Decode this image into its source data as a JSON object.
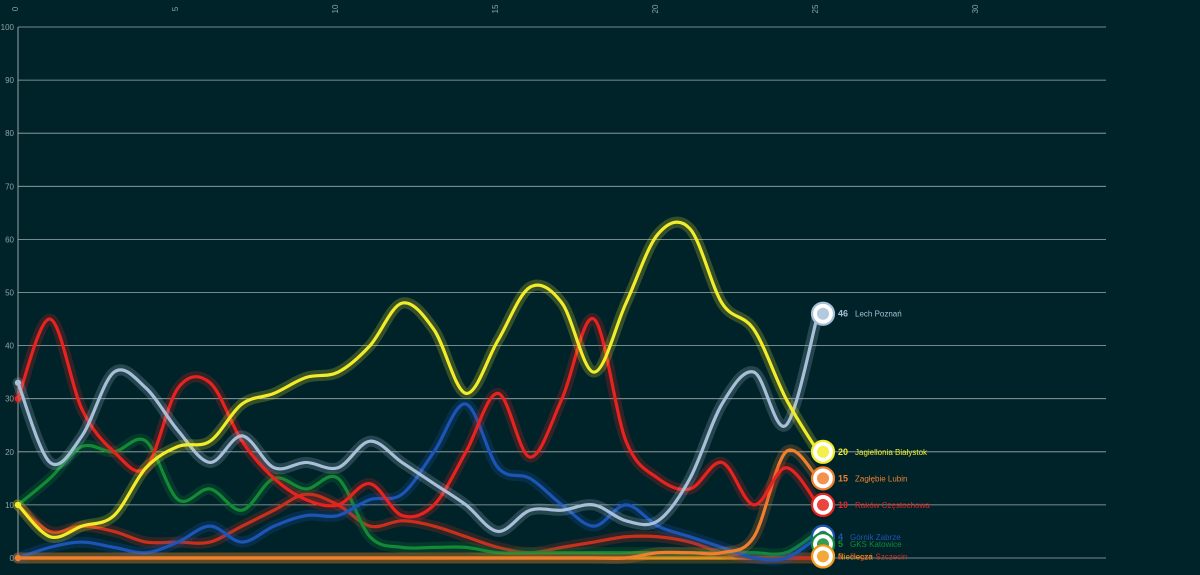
{
  "chart_data": {
    "type": "line",
    "title": "",
    "xlabel": "",
    "ylabel": "",
    "xlim": [
      0,
      34
    ],
    "ylim": [
      0,
      100
    ],
    "x_ticks": [
      0,
      5,
      10,
      15,
      20,
      25,
      30
    ],
    "y_ticks": [
      0,
      10,
      20,
      30,
      40,
      50,
      60,
      70,
      80,
      90,
      100
    ],
    "grid": true,
    "legend": "end-of-line labels on the right",
    "series": [
      {
        "name": "Lech Poznań",
        "label_value": "46",
        "color": "#a8bfd8",
        "icon": "lech-poznan-crest-icon",
        "x": [
          0,
          1,
          2,
          3,
          4,
          5,
          6,
          7,
          8,
          9,
          10,
          11,
          12,
          13,
          14,
          15,
          16,
          17,
          18,
          19,
          20,
          21,
          22,
          23,
          24,
          25
        ],
        "values": [
          33,
          18,
          23,
          35,
          32,
          24,
          18,
          23,
          17,
          18,
          17,
          22,
          18,
          14,
          10,
          5,
          9,
          9,
          10,
          7,
          7,
          15,
          29,
          35,
          25,
          46
        ]
      },
      {
        "name": "Jagiellonia Białystok",
        "label_value": "20",
        "color": "#f2ec2a",
        "icon": "jagiellonia-crest-icon",
        "x": [
          0,
          1,
          2,
          3,
          4,
          5,
          6,
          7,
          8,
          9,
          10,
          11,
          12,
          13,
          14,
          15,
          16,
          17,
          18,
          19,
          20,
          21,
          22,
          23,
          24,
          25
        ],
        "values": [
          10,
          4,
          6,
          8,
          17,
          21,
          22,
          29,
          31,
          34,
          35,
          40,
          48,
          43,
          31,
          41,
          51,
          48,
          35,
          48,
          61,
          62,
          48,
          43,
          30,
          20
        ]
      },
      {
        "name": "Zagłębie Lubin",
        "label_value": "15",
        "color": "#f07f2e",
        "icon": "zaglebie-crest-icon",
        "x": [
          0,
          1,
          2,
          3,
          4,
          5,
          6,
          7,
          8,
          9,
          10,
          11,
          12,
          13,
          14,
          15,
          16,
          17,
          18,
          19,
          20,
          21,
          22,
          23,
          24,
          25
        ],
        "values": [
          0,
          0,
          0,
          0,
          0,
          0,
          0,
          0,
          0,
          0,
          0,
          0,
          0,
          0,
          0,
          0,
          0,
          0,
          0,
          0,
          1,
          1,
          1,
          4,
          20,
          15
        ]
      },
      {
        "name": "Raków Częstochowa",
        "label_value": "10",
        "color": "#e8231f",
        "icon": "rakow-crest-icon",
        "x": [
          0,
          1,
          2,
          3,
          4,
          5,
          6,
          7,
          8,
          9,
          10,
          11,
          12,
          13,
          14,
          15,
          16,
          17,
          18,
          19,
          20,
          21,
          22,
          23,
          24,
          25
        ],
        "values": [
          30,
          45,
          28,
          20,
          17,
          32,
          33,
          22,
          15,
          11,
          10,
          14,
          8,
          10,
          20,
          31,
          19,
          30,
          45,
          22,
          15,
          13,
          18,
          10,
          17,
          10
        ]
      },
      {
        "name": "Górnik Zabrze",
        "label_value": "4",
        "color": "#1c55b5",
        "icon": "gornik-crest-icon",
        "x": [
          0,
          1,
          2,
          3,
          4,
          5,
          6,
          7,
          8,
          9,
          10,
          11,
          12,
          13,
          14,
          15,
          16,
          17,
          18,
          19,
          20,
          21,
          22,
          23,
          24,
          25
        ],
        "values": [
          0,
          2,
          3,
          2,
          1,
          3,
          6,
          3,
          6,
          8,
          8,
          11,
          12,
          20,
          29,
          17,
          15,
          10,
          6,
          10,
          6,
          4,
          2,
          0,
          0,
          4
        ]
      },
      {
        "name": "GKS Katowice",
        "label_value": "5",
        "color": "#138a36",
        "icon": "gks-katowice-crest-icon",
        "x": [
          0,
          1,
          2,
          3,
          4,
          5,
          6,
          7,
          8,
          9,
          10,
          11,
          12,
          13,
          14,
          15,
          16,
          17,
          18,
          19,
          20,
          21,
          22,
          23,
          24,
          25
        ],
        "values": [
          10,
          15,
          21,
          20,
          22,
          11,
          13,
          9,
          15,
          13,
          15,
          4,
          2,
          2,
          2,
          1,
          1,
          1,
          1,
          1,
          1,
          1,
          1,
          1,
          1,
          5
        ]
      },
      {
        "name": "Pogoń Szczecin",
        "label_value": "0",
        "color": "#c8301e",
        "icon": "pogon-crest-icon",
        "x": [
          0,
          1,
          2,
          3,
          4,
          5,
          6,
          7,
          8,
          9,
          10,
          11,
          12,
          13,
          14,
          15,
          16,
          17,
          18,
          19,
          20,
          21,
          22,
          23,
          24,
          25
        ],
        "values": [
          10,
          5,
          6,
          5,
          3,
          3,
          3,
          6,
          9,
          12,
          10,
          6,
          7,
          6,
          4,
          2,
          1,
          2,
          3,
          4,
          4,
          3,
          1,
          0,
          0,
          0
        ]
      },
      {
        "name": "Termalica Nieciecza",
        "label_value": "",
        "color": "#f09a18",
        "icon": "termalica-crest-icon",
        "x": [
          0,
          1,
          2,
          3,
          4,
          5,
          6,
          7,
          8,
          9,
          10,
          11,
          12,
          13,
          14,
          15,
          16,
          17,
          18,
          19,
          20,
          21,
          22,
          23,
          24,
          25
        ],
        "values": [
          0,
          0,
          0,
          0,
          0,
          0,
          0,
          0,
          0,
          0,
          0,
          0,
          0,
          0,
          0,
          0,
          0,
          0,
          0,
          0,
          0,
          0,
          0,
          0,
          0,
          0
        ]
      }
    ],
    "end_labels": [
      {
        "series": "Lech Poznań",
        "value": "46",
        "name": "Lech Poznań"
      },
      {
        "series": "Jagiellonia Białystok",
        "value": "20",
        "name": "Jagiellonia Białystok"
      },
      {
        "series": "Zagłębie Lubin",
        "value": "15",
        "name": "Zagłębie Lubin"
      },
      {
        "series": "Raków Częstochowa",
        "value": "10",
        "name": "Raków Częstochowa"
      },
      {
        "series": "Górnik Zabrze",
        "value": "4",
        "name": "Górnik Zabrze"
      },
      {
        "series": "GKS Katowice",
        "value": "5",
        "name": "GKS Katowice"
      },
      {
        "series": "Pogoń Szczecin",
        "value": "0",
        "name": "Pogoń Szczecin"
      },
      {
        "series": "Termalica Nieciecza",
        "value": "",
        "name": "Nieciecza"
      }
    ]
  }
}
